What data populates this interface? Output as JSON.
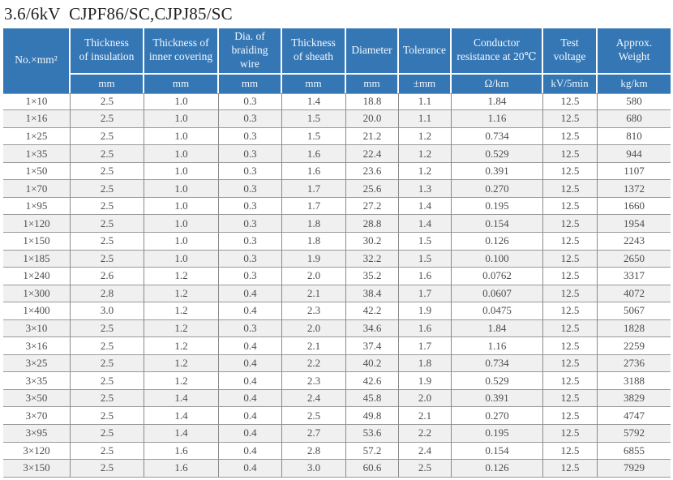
{
  "title": "3.6/6kV  CJPF86/SC,CJPJ85/SC",
  "colors": {
    "header_bg": "#3577b5",
    "header_text": "#f4f8fc",
    "stripe": "#f0f0f0",
    "border_h": "#999999",
    "border_v": "#8a8a8a",
    "body_text": "#4d4d4d",
    "title_text": "#1f1f1f"
  },
  "table": {
    "header": {
      "col0": {
        "label": "No.×mm²"
      },
      "cols": [
        {
          "label": "Thickness\nof insulation",
          "unit": "mm"
        },
        {
          "label": "Thickness of\ninner covering",
          "unit": "mm"
        },
        {
          "label": "Dia. of\nbraiding wire",
          "unit": "mm"
        },
        {
          "label": "Thickness\nof sheath",
          "unit": "mm"
        },
        {
          "label": "Diameter",
          "unit": "mm"
        },
        {
          "label": "Tolerance",
          "unit": "±mm"
        },
        {
          "label": "Conductor\nresistance at 20℃",
          "unit": "Ω/km"
        },
        {
          "label": "Test\nvoltage",
          "unit": "kV/5min"
        },
        {
          "label": "Approx.\nWeight",
          "unit": "kg/km"
        }
      ]
    },
    "rows": [
      [
        "1×10",
        "2.5",
        "1.0",
        "0.3",
        "1.4",
        "18.8",
        "1.1",
        "1.84",
        "12.5",
        "580"
      ],
      [
        "1×16",
        "2.5",
        "1.0",
        "0.3",
        "1.5",
        "20.0",
        "1.1",
        "1.16",
        "12.5",
        "680"
      ],
      [
        "1×25",
        "2.5",
        "1.0",
        "0.3",
        "1.5",
        "21.2",
        "1.2",
        "0.734",
        "12.5",
        "810"
      ],
      [
        "1×35",
        "2.5",
        "1.0",
        "0.3",
        "1.6",
        "22.4",
        "1.2",
        "0.529",
        "12.5",
        "944"
      ],
      [
        "1×50",
        "2.5",
        "1.0",
        "0.3",
        "1.6",
        "23.6",
        "1.2",
        "0.391",
        "12.5",
        "1107"
      ],
      [
        "1×70",
        "2.5",
        "1.0",
        "0.3",
        "1.7",
        "25.6",
        "1.3",
        "0.270",
        "12.5",
        "1372"
      ],
      [
        "1×95",
        "2.5",
        "1.0",
        "0.3",
        "1.7",
        "27.2",
        "1.4",
        "0.195",
        "12.5",
        "1660"
      ],
      [
        "1×120",
        "2.5",
        "1.0",
        "0.3",
        "1.8",
        "28.8",
        "1.4",
        "0.154",
        "12.5",
        "1954"
      ],
      [
        "1×150",
        "2.5",
        "1.0",
        "0.3",
        "1.8",
        "30.2",
        "1.5",
        "0.126",
        "12.5",
        "2243"
      ],
      [
        "1×185",
        "2.5",
        "1.0",
        "0.3",
        "1.9",
        "32.2",
        "1.5",
        "0.100",
        "12.5",
        "2650"
      ],
      [
        "1×240",
        "2.6",
        "1.2",
        "0.3",
        "2.0",
        "35.2",
        "1.6",
        "0.0762",
        "12.5",
        "3317"
      ],
      [
        "1×300",
        "2.8",
        "1.2",
        "0.4",
        "2.1",
        "38.4",
        "1.7",
        "0.0607",
        "12.5",
        "4072"
      ],
      [
        "1×400",
        "3.0",
        "1.2",
        "0.4",
        "2.3",
        "42.2",
        "1.9",
        "0.0475",
        "12.5",
        "5067"
      ],
      [
        "3×10",
        "2.5",
        "1.2",
        "0.3",
        "2.0",
        "34.6",
        "1.6",
        "1.84",
        "12.5",
        "1828"
      ],
      [
        "3×16",
        "2.5",
        "1.2",
        "0.4",
        "2.1",
        "37.4",
        "1.7",
        "1.16",
        "12.5",
        "2259"
      ],
      [
        "3×25",
        "2.5",
        "1.2",
        "0.4",
        "2.2",
        "40.2",
        "1.8",
        "0.734",
        "12.5",
        "2736"
      ],
      [
        "3×35",
        "2.5",
        "1.2",
        "0.4",
        "2.3",
        "42.6",
        "1.9",
        "0.529",
        "12.5",
        "3188"
      ],
      [
        "3×50",
        "2.5",
        "1.4",
        "0.4",
        "2.4",
        "45.8",
        "2.0",
        "0.391",
        "12.5",
        "3829"
      ],
      [
        "3×70",
        "2.5",
        "1.4",
        "0.4",
        "2.5",
        "49.8",
        "2.1",
        "0.270",
        "12.5",
        "4747"
      ],
      [
        "3×95",
        "2.5",
        "1.4",
        "0.4",
        "2.7",
        "53.6",
        "2.2",
        "0.195",
        "12.5",
        "5792"
      ],
      [
        "3×120",
        "2.5",
        "1.6",
        "0.4",
        "2.8",
        "57.2",
        "2.4",
        "0.154",
        "12.5",
        "6855"
      ],
      [
        "3×150",
        "2.5",
        "1.6",
        "0.4",
        "3.0",
        "60.6",
        "2.5",
        "0.126",
        "12.5",
        "7929"
      ]
    ]
  }
}
